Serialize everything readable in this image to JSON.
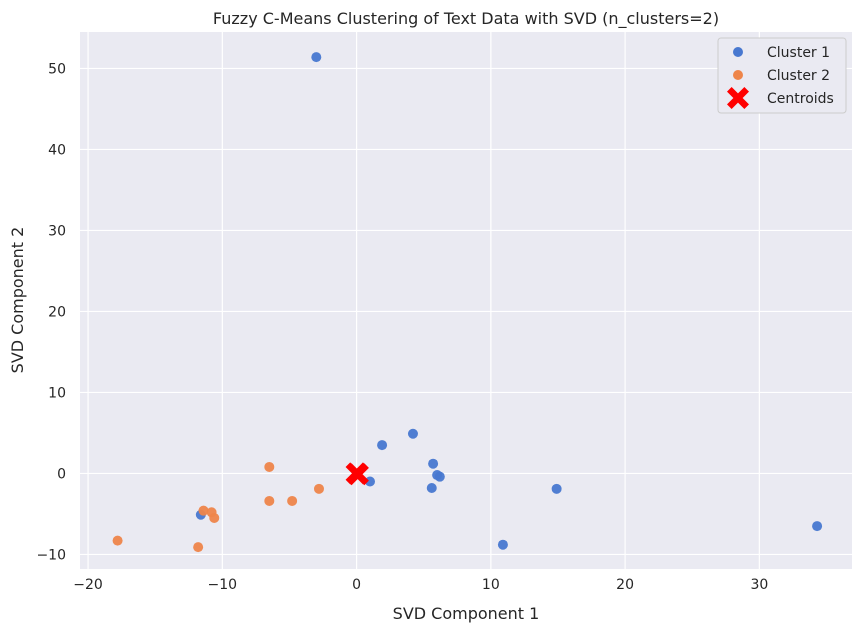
{
  "chart_data": {
    "type": "scatter",
    "title": "Fuzzy C-Means Clustering of Text Data with SVD (n_clusters=2)",
    "xlabel": "SVD Component 1",
    "ylabel": "SVD Component 2",
    "xlim": [
      -20.6,
      36.9
    ],
    "ylim": [
      -11.8,
      54.5
    ],
    "xticks": [
      -20,
      -10,
      0,
      10,
      20,
      30
    ],
    "yticks": [
      -10,
      0,
      10,
      20,
      30,
      40,
      50
    ],
    "grid": true,
    "legend_position": "top-right",
    "series": [
      {
        "name": "Cluster 1",
        "color": "#4878d0",
        "marker": "circle",
        "points": [
          [
            -3.0,
            51.4
          ],
          [
            4.2,
            4.9
          ],
          [
            1.9,
            3.5
          ],
          [
            5.7,
            1.2
          ],
          [
            6.0,
            -0.2
          ],
          [
            6.2,
            -0.4
          ],
          [
            1.0,
            -1.0
          ],
          [
            5.6,
            -1.8
          ],
          [
            14.9,
            -1.9
          ],
          [
            -11.6,
            -5.1
          ],
          [
            10.9,
            -8.8
          ],
          [
            34.3,
            -6.5
          ]
        ]
      },
      {
        "name": "Cluster 2",
        "color": "#ee854a",
        "marker": "circle",
        "points": [
          [
            -6.5,
            0.8
          ],
          [
            -2.8,
            -1.9
          ],
          [
            -6.5,
            -3.4
          ],
          [
            -4.8,
            -3.4
          ],
          [
            -11.4,
            -4.6
          ],
          [
            -10.8,
            -4.8
          ],
          [
            -10.6,
            -5.5
          ],
          [
            -17.8,
            -8.3
          ],
          [
            -11.8,
            -9.1
          ]
        ]
      },
      {
        "name": "Centroids",
        "color": "#ff0000",
        "marker": "X",
        "points": [
          [
            0.0,
            0.0
          ],
          [
            0.1,
            -0.1
          ]
        ]
      }
    ]
  }
}
